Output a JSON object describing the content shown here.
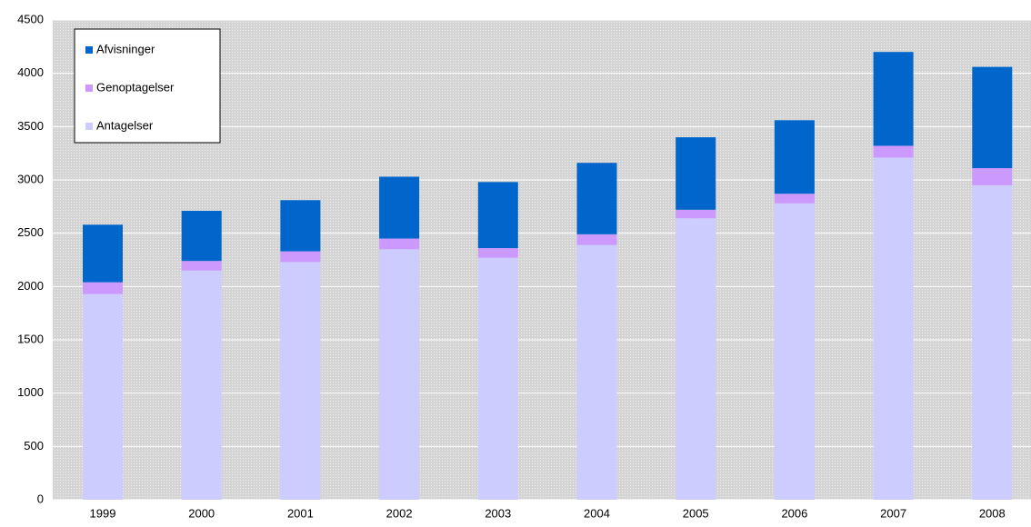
{
  "chart_data": {
    "type": "stacked_bar",
    "categories": [
      "1999",
      "2000",
      "2001",
      "2002",
      "2003",
      "2004",
      "2005",
      "2006",
      "2007",
      "2008"
    ],
    "series": [
      {
        "name": "Antagelser",
        "color": "#ccccff",
        "values": [
          1930,
          2150,
          2230,
          2350,
          2270,
          2390,
          2640,
          2780,
          3210,
          2950
        ]
      },
      {
        "name": "Genoptagelser",
        "color": "#cc99ff",
        "values": [
          110,
          90,
          100,
          100,
          90,
          100,
          80,
          90,
          110,
          160
        ]
      },
      {
        "name": "Afvisninger",
        "color": "#0066cc",
        "values": [
          540,
          470,
          480,
          580,
          620,
          670,
          680,
          690,
          880,
          950
        ]
      }
    ],
    "ylim": [
      0,
      4500
    ],
    "yticks": [
      0,
      500,
      1000,
      1500,
      2000,
      2500,
      3000,
      3500,
      4000,
      4500
    ],
    "grid": true,
    "legend": "upper left"
  }
}
